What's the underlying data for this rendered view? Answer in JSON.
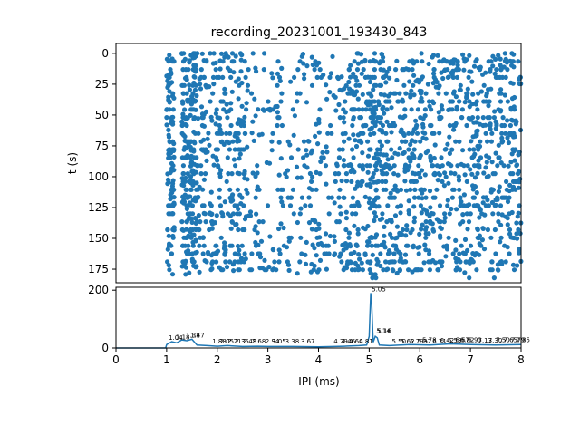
{
  "chart_data": [
    {
      "type": "scatter",
      "title": "recording_20231001_193430_843",
      "ylabel": "t (s)",
      "xlim": [
        0,
        8
      ],
      "ylim": [
        186,
        -8
      ],
      "y_inverted": true,
      "yticks": [
        "0",
        "25",
        "50",
        "75",
        "100",
        "125",
        "150",
        "175"
      ],
      "color": "#1f77b4",
      "column_clusters": [
        {
          "x_range": [
            1.0,
            1.15
          ],
          "n": 120
        },
        {
          "x_range": [
            1.3,
            1.6
          ],
          "n": 220
        },
        {
          "x_range": [
            1.6,
            2.6
          ],
          "n": 300
        },
        {
          "x_range": [
            2.6,
            4.4
          ],
          "n": 260
        },
        {
          "x_range": [
            4.4,
            5.0
          ],
          "n": 180
        },
        {
          "x_range": [
            5.0,
            5.15
          ],
          "n": 90
        },
        {
          "x_range": [
            5.15,
            8.0
          ],
          "n": 900
        }
      ]
    },
    {
      "type": "line",
      "xlabel": "IPI (ms)",
      "xlim": [
        0,
        8
      ],
      "ylim": [
        0,
        210
      ],
      "xticks": [
        "0",
        "1",
        "2",
        "3",
        "4",
        "5",
        "6",
        "7",
        "8"
      ],
      "yticks": [
        "0",
        "200"
      ],
      "color": "#1f77b4",
      "x": [
        0,
        0.98,
        1.0,
        1.1,
        1.2,
        1.3,
        1.4,
        1.5,
        1.6,
        1.8,
        2.0,
        2.2,
        2.5,
        2.8,
        3.0,
        3.5,
        4.0,
        4.5,
        4.8,
        4.95,
        5.0,
        5.03,
        5.05,
        5.08,
        5.12,
        5.16,
        5.2,
        5.4,
        5.8,
        6.2,
        6.6,
        7.0,
        7.5,
        8.0
      ],
      "y": [
        0,
        0,
        12,
        22,
        18,
        28,
        25,
        30,
        10,
        8,
        6,
        8,
        5,
        6,
        5,
        5,
        4,
        6,
        8,
        10,
        40,
        190,
        150,
        20,
        40,
        35,
        10,
        8,
        12,
        10,
        14,
        12,
        10,
        12
      ],
      "peak_labels": [
        {
          "x": 1.04,
          "y": 22,
          "text": "1.04"
        },
        {
          "x": 1.18,
          "y": 24,
          "text": "1.18"
        },
        {
          "x": 1.38,
          "y": 30,
          "text": "1.38"
        },
        {
          "x": 1.47,
          "y": 30,
          "text": "1.47"
        },
        {
          "x": 1.9,
          "y": 10,
          "text": "1.88"
        },
        {
          "x": 2.05,
          "y": 10,
          "text": "2.05"
        },
        {
          "x": 2.2,
          "y": 10,
          "text": "2.21"
        },
        {
          "x": 2.35,
          "y": 10,
          "text": "2.35"
        },
        {
          "x": 2.5,
          "y": 10,
          "text": "2.49"
        },
        {
          "x": 2.68,
          "y": 10,
          "text": "2.68"
        },
        {
          "x": 2.95,
          "y": 10,
          "text": "2.94"
        },
        {
          "x": 3.08,
          "y": 10,
          "text": "3.05"
        },
        {
          "x": 3.34,
          "y": 10,
          "text": "3.38"
        },
        {
          "x": 3.65,
          "y": 10,
          "text": "3.67"
        },
        {
          "x": 4.3,
          "y": 10,
          "text": "4.29"
        },
        {
          "x": 4.45,
          "y": 10,
          "text": "4.46"
        },
        {
          "x": 4.6,
          "y": 10,
          "text": "4.60"
        },
        {
          "x": 4.8,
          "y": 10,
          "text": "4.81"
        },
        {
          "x": 5.05,
          "y": 190,
          "text": "5.05"
        },
        {
          "x": 5.14,
          "y": 45,
          "text": "5.14"
        },
        {
          "x": 5.16,
          "y": 45,
          "text": "5.16"
        },
        {
          "x": 5.45,
          "y": 10,
          "text": "5.50"
        },
        {
          "x": 5.62,
          "y": 10,
          "text": "5.62"
        },
        {
          "x": 5.8,
          "y": 10,
          "text": "5.79"
        },
        {
          "x": 5.95,
          "y": 10,
          "text": "5.92"
        },
        {
          "x": 6.05,
          "y": 14,
          "text": "5.78"
        },
        {
          "x": 6.25,
          "y": 10,
          "text": "6.21"
        },
        {
          "x": 6.4,
          "y": 12,
          "text": "6.42"
        },
        {
          "x": 6.55,
          "y": 12,
          "text": "6.53"
        },
        {
          "x": 6.7,
          "y": 14,
          "text": "6.67"
        },
        {
          "x": 6.8,
          "y": 14,
          "text": "6.82"
        },
        {
          "x": 6.95,
          "y": 14,
          "text": "6.93"
        },
        {
          "x": 7.15,
          "y": 12,
          "text": "7.13"
        },
        {
          "x": 7.35,
          "y": 12,
          "text": "7.30"
        },
        {
          "x": 7.5,
          "y": 14,
          "text": "7.50"
        },
        {
          "x": 7.65,
          "y": 14,
          "text": "7.65"
        },
        {
          "x": 7.8,
          "y": 14,
          "text": "7.79"
        },
        {
          "x": 7.9,
          "y": 14,
          "text": "7.85"
        }
      ]
    }
  ]
}
